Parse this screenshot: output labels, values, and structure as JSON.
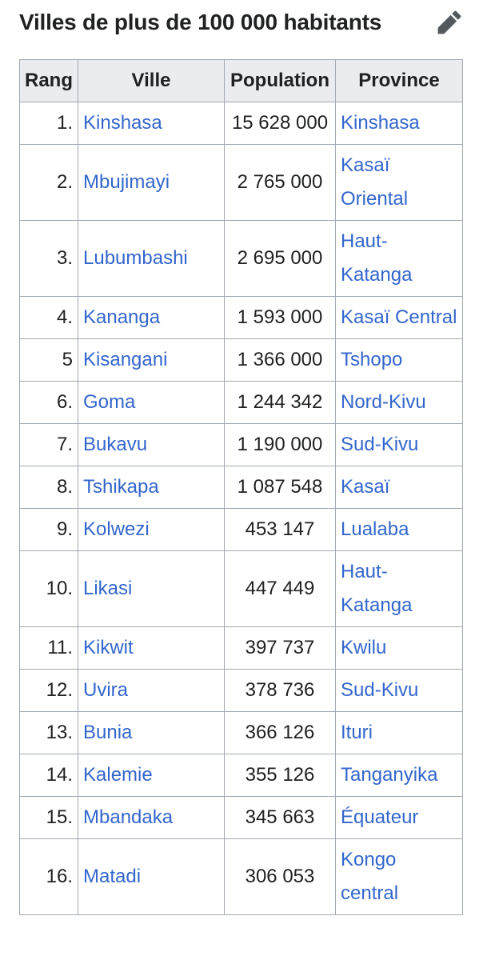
{
  "section": {
    "title": "Villes de plus de 100 000 habitants",
    "edit_icon": "pencil-icon"
  },
  "table": {
    "headers": {
      "rank": "Rang",
      "city": "Ville",
      "population": "Population",
      "province": "Province"
    },
    "rows": [
      {
        "rank": "1.",
        "city": "Kinshasa",
        "population": "15 628 000",
        "province": "Kinshasa"
      },
      {
        "rank": "2.",
        "city": "Mbujimayi",
        "population": "2 765 000",
        "province": "Kasaï Oriental"
      },
      {
        "rank": "3.",
        "city": "Lubumbashi",
        "population": "2 695 000",
        "province": "Haut-Katanga"
      },
      {
        "rank": "4.",
        "city": "Kananga",
        "population": "1 593 000",
        "province": "Kasaï Central"
      },
      {
        "rank": "5",
        "city": "Kisangani",
        "population": "1 366 000",
        "province": "Tshopo"
      },
      {
        "rank": "6.",
        "city": "Goma",
        "population": "1 244 342",
        "province": "Nord-Kivu"
      },
      {
        "rank": "7.",
        "city": "Bukavu",
        "population": "1 190 000",
        "province": "Sud-Kivu"
      },
      {
        "rank": "8.",
        "city": "Tshikapa",
        "population": "1 087 548",
        "province": "Kasaï"
      },
      {
        "rank": "9.",
        "city": "Kolwezi",
        "population": "453 147",
        "province": "Lualaba"
      },
      {
        "rank": "10.",
        "city": "Likasi",
        "population": "447 449",
        "province": "Haut-Katanga"
      },
      {
        "rank": "11.",
        "city": "Kikwit",
        "population": "397 737",
        "province": "Kwilu"
      },
      {
        "rank": "12.",
        "city": "Uvira",
        "population": "378 736",
        "province": "Sud-Kivu"
      },
      {
        "rank": "13.",
        "city": "Bunia",
        "population": "366 126",
        "province": "Ituri"
      },
      {
        "rank": "14.",
        "city": "Kalemie",
        "population": "355 126",
        "province": "Tanganyika"
      },
      {
        "rank": "15.",
        "city": "Mbandaka",
        "population": "345 663",
        "province": "Équateur"
      },
      {
        "rank": "16.",
        "city": "Matadi",
        "population": "306 053",
        "province": "Kongo central"
      }
    ]
  },
  "colors": {
    "link": "#3366cc",
    "header_bg": "#eaecf0",
    "border": "#a2a9b1",
    "text": "#202122",
    "icon": "#54595d"
  }
}
